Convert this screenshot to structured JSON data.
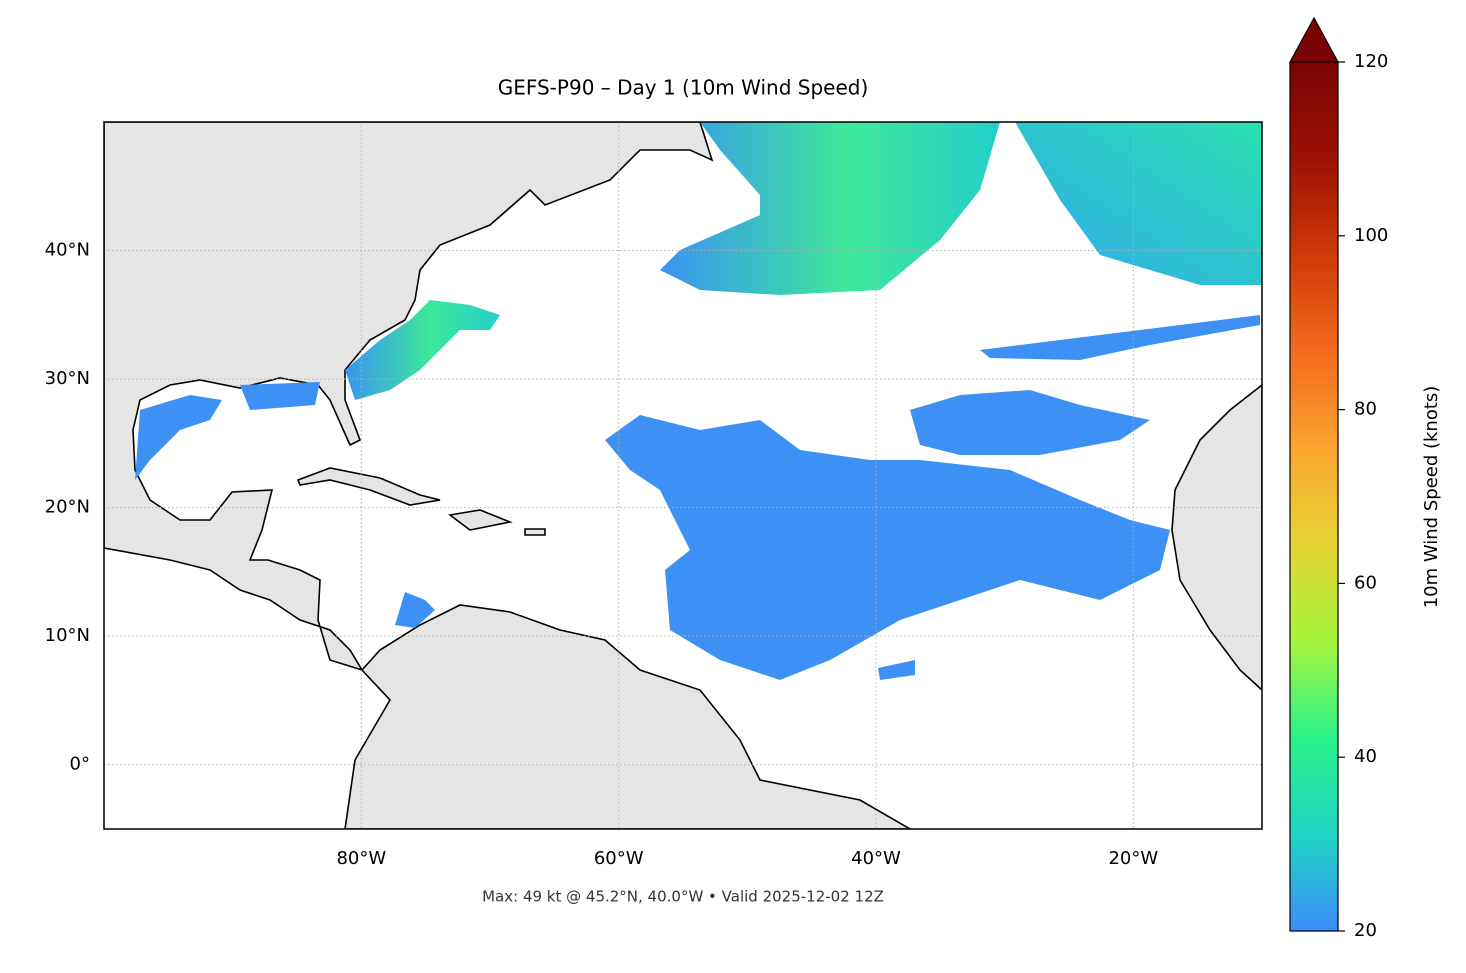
{
  "chart_data": {
    "type": "map",
    "title": "GEFS-P90 – Day 1 (10m Wind Speed)",
    "footer": "Max: 49 kt @ 45.2°N, 40.0°W • Valid 2025-12-02 12Z",
    "xlim": [
      -100,
      -10
    ],
    "ylim": [
      -5,
      50
    ],
    "xticks": [
      {
        "value": -80,
        "label": "80°W"
      },
      {
        "value": -60,
        "label": "60°W"
      },
      {
        "value": -40,
        "label": "40°W"
      },
      {
        "value": -20,
        "label": "20°W"
      }
    ],
    "yticks": [
      {
        "value": 0,
        "label": "0°"
      },
      {
        "value": 10,
        "label": "10°N"
      },
      {
        "value": 20,
        "label": "20°N"
      },
      {
        "value": 30,
        "label": "30°N"
      },
      {
        "value": 40,
        "label": "40°N"
      }
    ],
    "grid": true,
    "colorbar": {
      "label": "10m Wind Speed (knots)",
      "lim": [
        20,
        120
      ],
      "ticks": [
        20,
        40,
        60,
        80,
        100,
        120
      ],
      "colors": [
        "#3b8cf7",
        "#20d6c4",
        "#2af28a",
        "#a6f53b",
        "#e6d432",
        "#fba530",
        "#f26a1d",
        "#cf3a08",
        "#9b1203",
        "#7a0403"
      ]
    }
  }
}
